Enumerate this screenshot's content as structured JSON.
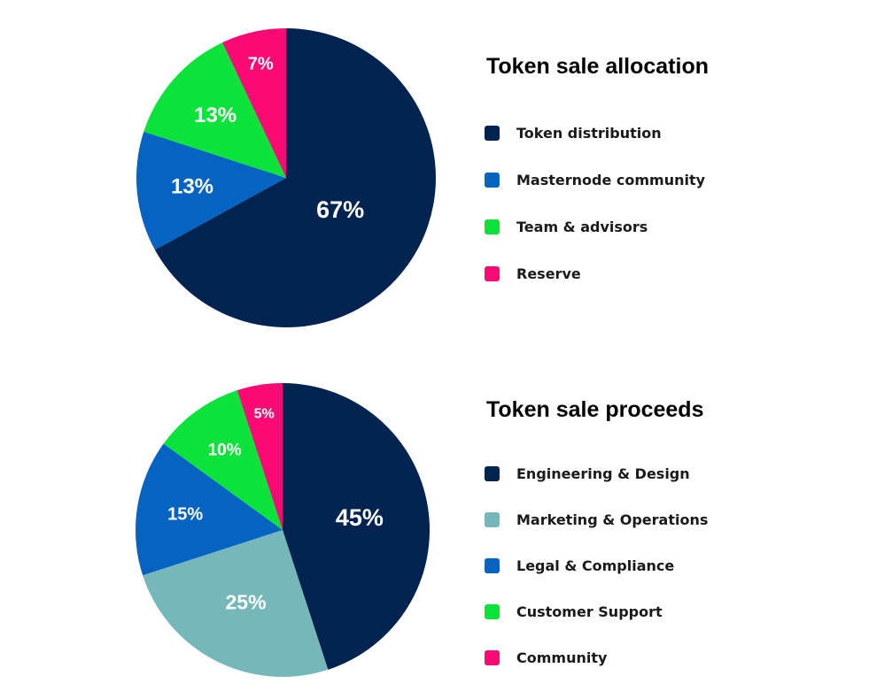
{
  "chart_data": [
    {
      "type": "pie",
      "title": "Token sale allocation",
      "slices": [
        {
          "name": "Token distribution",
          "value": 67,
          "label": "67%",
          "color": "#00234f"
        },
        {
          "name": "Masternode community",
          "value": 13,
          "label": "13%",
          "color": "#0563c1"
        },
        {
          "name": "Team & advisors",
          "value": 13,
          "label": "13%",
          "color": "#0ce33a"
        },
        {
          "name": "Reserve",
          "value": 7,
          "label": "7%",
          "color": "#fa0a75"
        }
      ]
    },
    {
      "type": "pie",
      "title": "Token sale proceeds",
      "slices": [
        {
          "name": "Engineering & Design",
          "value": 45,
          "label": "45%",
          "color": "#00234f"
        },
        {
          "name": "Marketing & Operations",
          "value": 25,
          "label": "25%",
          "color": "#76b8b9"
        },
        {
          "name": "Legal & Compliance",
          "value": 15,
          "label": "15%",
          "color": "#0563c1"
        },
        {
          "name": "Customer Support",
          "value": 10,
          "label": "10%",
          "color": "#0ce33a"
        },
        {
          "name": "Community",
          "value": 5,
          "label": "5%",
          "color": "#fa0a75"
        }
      ]
    }
  ]
}
